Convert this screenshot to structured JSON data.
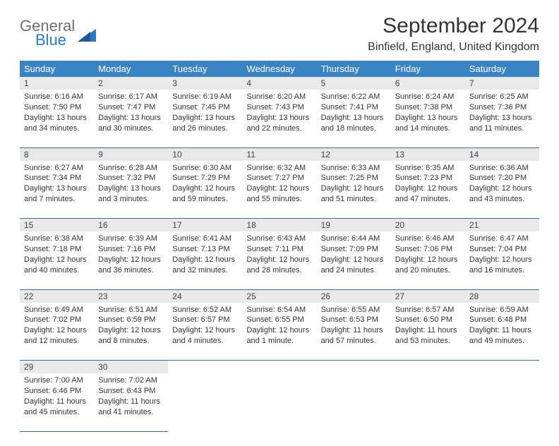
{
  "logo": {
    "general": "General",
    "blue": "Blue"
  },
  "title": "September 2024",
  "location": "Binfield, England, United Kingdom",
  "colors": {
    "header_bg": "#3b84c4",
    "header_text": "#ffffff",
    "daynum_bg": "#e9e9e9",
    "rule": "#3b6fa0",
    "logo_gray": "#6f6f6f",
    "logo_blue": "#2f78c3"
  },
  "weekdays": [
    "Sunday",
    "Monday",
    "Tuesday",
    "Wednesday",
    "Thursday",
    "Friday",
    "Saturday"
  ],
  "weeks": [
    {
      "nums": [
        "1",
        "2",
        "3",
        "4",
        "5",
        "6",
        "7"
      ],
      "cells": [
        {
          "sunrise": "Sunrise: 6:16 AM",
          "sunset": "Sunset: 7:50 PM",
          "day1": "Daylight: 13 hours",
          "day2": "and 34 minutes."
        },
        {
          "sunrise": "Sunrise: 6:17 AM",
          "sunset": "Sunset: 7:47 PM",
          "day1": "Daylight: 13 hours",
          "day2": "and 30 minutes."
        },
        {
          "sunrise": "Sunrise: 6:19 AM",
          "sunset": "Sunset: 7:45 PM",
          "day1": "Daylight: 13 hours",
          "day2": "and 26 minutes."
        },
        {
          "sunrise": "Sunrise: 6:20 AM",
          "sunset": "Sunset: 7:43 PM",
          "day1": "Daylight: 13 hours",
          "day2": "and 22 minutes."
        },
        {
          "sunrise": "Sunrise: 6:22 AM",
          "sunset": "Sunset: 7:41 PM",
          "day1": "Daylight: 13 hours",
          "day2": "and 18 minutes."
        },
        {
          "sunrise": "Sunrise: 6:24 AM",
          "sunset": "Sunset: 7:38 PM",
          "day1": "Daylight: 13 hours",
          "day2": "and 14 minutes."
        },
        {
          "sunrise": "Sunrise: 6:25 AM",
          "sunset": "Sunset: 7:36 PM",
          "day1": "Daylight: 13 hours",
          "day2": "and 11 minutes."
        }
      ]
    },
    {
      "nums": [
        "8",
        "9",
        "10",
        "11",
        "12",
        "13",
        "14"
      ],
      "cells": [
        {
          "sunrise": "Sunrise: 6:27 AM",
          "sunset": "Sunset: 7:34 PM",
          "day1": "Daylight: 13 hours",
          "day2": "and 7 minutes."
        },
        {
          "sunrise": "Sunrise: 6:28 AM",
          "sunset": "Sunset: 7:32 PM",
          "day1": "Daylight: 13 hours",
          "day2": "and 3 minutes."
        },
        {
          "sunrise": "Sunrise: 6:30 AM",
          "sunset": "Sunset: 7:29 PM",
          "day1": "Daylight: 12 hours",
          "day2": "and 59 minutes."
        },
        {
          "sunrise": "Sunrise: 6:32 AM",
          "sunset": "Sunset: 7:27 PM",
          "day1": "Daylight: 12 hours",
          "day2": "and 55 minutes."
        },
        {
          "sunrise": "Sunrise: 6:33 AM",
          "sunset": "Sunset: 7:25 PM",
          "day1": "Daylight: 12 hours",
          "day2": "and 51 minutes."
        },
        {
          "sunrise": "Sunrise: 6:35 AM",
          "sunset": "Sunset: 7:23 PM",
          "day1": "Daylight: 12 hours",
          "day2": "and 47 minutes."
        },
        {
          "sunrise": "Sunrise: 6:36 AM",
          "sunset": "Sunset: 7:20 PM",
          "day1": "Daylight: 12 hours",
          "day2": "and 43 minutes."
        }
      ]
    },
    {
      "nums": [
        "15",
        "16",
        "17",
        "18",
        "19",
        "20",
        "21"
      ],
      "cells": [
        {
          "sunrise": "Sunrise: 6:38 AM",
          "sunset": "Sunset: 7:18 PM",
          "day1": "Daylight: 12 hours",
          "day2": "and 40 minutes."
        },
        {
          "sunrise": "Sunrise: 6:39 AM",
          "sunset": "Sunset: 7:16 PM",
          "day1": "Daylight: 12 hours",
          "day2": "and 36 minutes."
        },
        {
          "sunrise": "Sunrise: 6:41 AM",
          "sunset": "Sunset: 7:13 PM",
          "day1": "Daylight: 12 hours",
          "day2": "and 32 minutes."
        },
        {
          "sunrise": "Sunrise: 6:43 AM",
          "sunset": "Sunset: 7:11 PM",
          "day1": "Daylight: 12 hours",
          "day2": "and 28 minutes."
        },
        {
          "sunrise": "Sunrise: 6:44 AM",
          "sunset": "Sunset: 7:09 PM",
          "day1": "Daylight: 12 hours",
          "day2": "and 24 minutes."
        },
        {
          "sunrise": "Sunrise: 6:46 AM",
          "sunset": "Sunset: 7:06 PM",
          "day1": "Daylight: 12 hours",
          "day2": "and 20 minutes."
        },
        {
          "sunrise": "Sunrise: 6:47 AM",
          "sunset": "Sunset: 7:04 PM",
          "day1": "Daylight: 12 hours",
          "day2": "and 16 minutes."
        }
      ]
    },
    {
      "nums": [
        "22",
        "23",
        "24",
        "25",
        "26",
        "27",
        "28"
      ],
      "cells": [
        {
          "sunrise": "Sunrise: 6:49 AM",
          "sunset": "Sunset: 7:02 PM",
          "day1": "Daylight: 12 hours",
          "day2": "and 12 minutes."
        },
        {
          "sunrise": "Sunrise: 6:51 AM",
          "sunset": "Sunset: 6:59 PM",
          "day1": "Daylight: 12 hours",
          "day2": "and 8 minutes."
        },
        {
          "sunrise": "Sunrise: 6:52 AM",
          "sunset": "Sunset: 6:57 PM",
          "day1": "Daylight: 12 hours",
          "day2": "and 4 minutes."
        },
        {
          "sunrise": "Sunrise: 6:54 AM",
          "sunset": "Sunset: 6:55 PM",
          "day1": "Daylight: 12 hours",
          "day2": "and 1 minute."
        },
        {
          "sunrise": "Sunrise: 6:55 AM",
          "sunset": "Sunset: 6:53 PM",
          "day1": "Daylight: 11 hours",
          "day2": "and 57 minutes."
        },
        {
          "sunrise": "Sunrise: 6:57 AM",
          "sunset": "Sunset: 6:50 PM",
          "day1": "Daylight: 11 hours",
          "day2": "and 53 minutes."
        },
        {
          "sunrise": "Sunrise: 6:59 AM",
          "sunset": "Sunset: 6:48 PM",
          "day1": "Daylight: 11 hours",
          "day2": "and 49 minutes."
        }
      ]
    },
    {
      "nums": [
        "29",
        "30",
        "",
        "",
        "",
        "",
        ""
      ],
      "cells": [
        {
          "sunrise": "Sunrise: 7:00 AM",
          "sunset": "Sunset: 6:46 PM",
          "day1": "Daylight: 11 hours",
          "day2": "and 45 minutes."
        },
        {
          "sunrise": "Sunrise: 7:02 AM",
          "sunset": "Sunset: 6:43 PM",
          "day1": "Daylight: 11 hours",
          "day2": "and 41 minutes."
        },
        null,
        null,
        null,
        null,
        null
      ]
    }
  ]
}
